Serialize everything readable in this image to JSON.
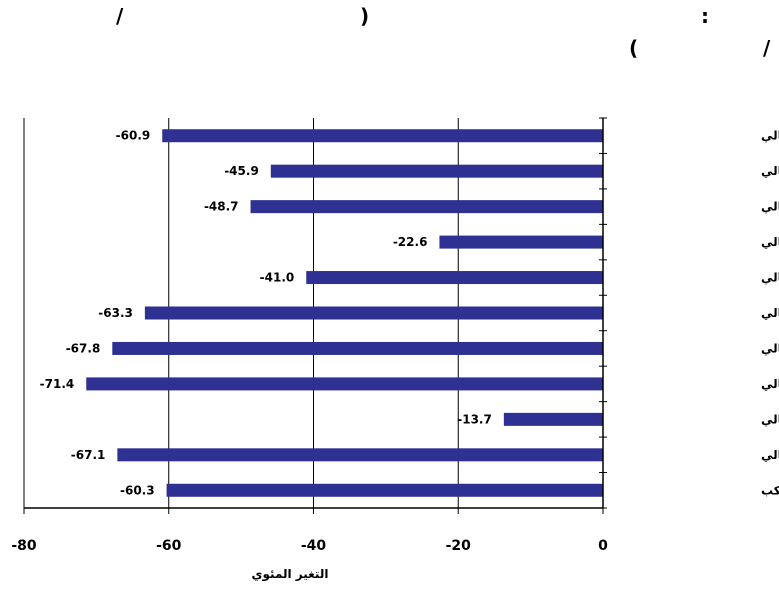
{
  "header": {
    "line1": [
      "/",
      ")",
      ":"
    ],
    "line2": [
      "/",
      "("
    ]
  },
  "chart_data": {
    "type": "bar",
    "orientation": "horizontal",
    "categories": [
      "سوق ابوظبي المالي",
      "سوق عمان المالي",
      "سوق البحرين المالي",
      "سوق بيروت المالي",
      "سوق الدوحة المالي",
      "سوق دبي المالي",
      "سوق الكويت المالي",
      "سوق مسقط المالي",
      "سوق فلسطين المالي",
      "سوق السعودية المالي",
      "* المؤشر المركب"
    ],
    "values": [
      -60.9,
      -45.9,
      -48.7,
      -22.6,
      -41.0,
      -63.3,
      -67.8,
      -71.4,
      -13.7,
      -67.1,
      -60.3
    ],
    "data_labels": [
      "-60.9",
      "-45.9",
      "-48.7",
      "-22.6",
      "-41.0",
      "-63.3",
      "-67.8",
      "-71.4",
      "-13.7",
      "-67.1",
      "-60.3"
    ],
    "xlabel": "التغير المئوي",
    "xlim": [
      -80,
      0
    ],
    "xticks": [
      -80,
      -60,
      -40,
      -20,
      0
    ],
    "xtick_labels": [
      "-80",
      "-60",
      "-40",
      "-20",
      "0"
    ],
    "grid": "vertical",
    "bar_color": "#2e3192"
  }
}
